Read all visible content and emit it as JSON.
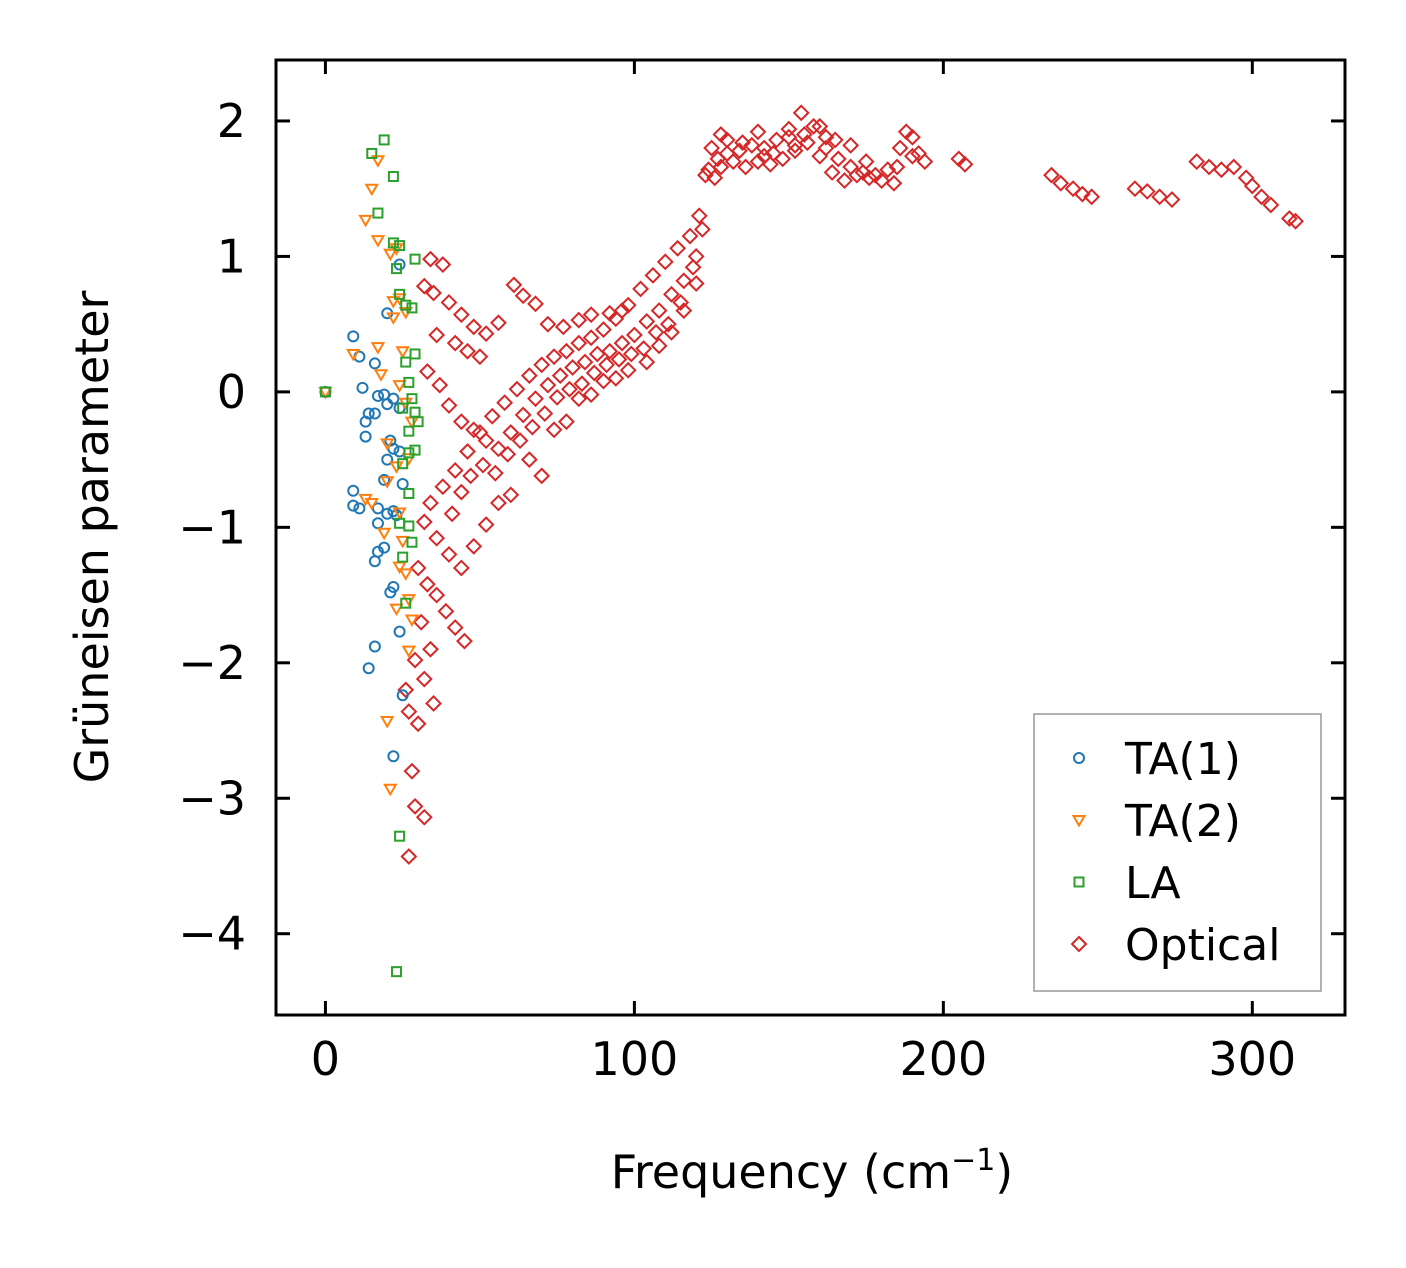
{
  "chart_data": {
    "type": "scatter",
    "title": "",
    "xlabel": "Frequency (cm",
    "xlabel_sup": "−1",
    "xlabel_close": ")",
    "ylabel": "Grüneisen parameter",
    "xlim": [
      -16,
      330
    ],
    "ylim": [
      -4.6,
      2.45
    ],
    "xticks": [
      0,
      100,
      200,
      300
    ],
    "xtick_labels": [
      "0",
      "100",
      "200",
      "300"
    ],
    "yticks": [
      -4,
      -3,
      -2,
      -1,
      0,
      1,
      2
    ],
    "ytick_labels": [
      "−4",
      "−3",
      "−2",
      "−1",
      "0",
      "1",
      "2"
    ],
    "legend_position": "bottom-right",
    "series": [
      {
        "name": "TA(1)",
        "marker": "circle",
        "color": "#1f77b4",
        "points": [
          [
            0,
            0
          ],
          [
            9,
            0.41
          ],
          [
            11,
            0.26
          ],
          [
            12,
            0.03
          ],
          [
            14,
            -0.16
          ],
          [
            17,
            -0.03
          ],
          [
            19,
            -0.02
          ],
          [
            20,
            -0.09
          ],
          [
            22,
            -0.05
          ],
          [
            24,
            -0.12
          ],
          [
            16,
            -0.16
          ],
          [
            13,
            -0.22
          ],
          [
            13,
            -0.33
          ],
          [
            21,
            -0.36
          ],
          [
            22,
            -0.42
          ],
          [
            24,
            -0.44
          ],
          [
            20,
            -0.5
          ],
          [
            19,
            -0.65
          ],
          [
            25,
            -0.68
          ],
          [
            9,
            -0.73
          ],
          [
            9,
            -0.84
          ],
          [
            11,
            -0.86
          ],
          [
            17,
            -0.86
          ],
          [
            22,
            -0.88
          ],
          [
            20,
            -0.9
          ],
          [
            23,
            -0.91
          ],
          [
            17,
            -0.97
          ],
          [
            19,
            -1.15
          ],
          [
            17,
            -1.18
          ],
          [
            16,
            -1.25
          ],
          [
            22,
            -1.44
          ],
          [
            21,
            -1.48
          ],
          [
            24,
            -1.77
          ],
          [
            16,
            -1.88
          ],
          [
            14,
            -2.04
          ],
          [
            25,
            -2.24
          ],
          [
            22,
            -2.69
          ],
          [
            20,
            0.58
          ],
          [
            24,
            0.94
          ],
          [
            16,
            0.21
          ]
        ]
      },
      {
        "name": "TA(2)",
        "marker": "triangle",
        "color": "#ff7f0e",
        "points": [
          [
            0,
            0
          ],
          [
            9,
            0.28
          ],
          [
            13,
            1.27
          ],
          [
            15,
            1.5
          ],
          [
            17,
            1.71
          ],
          [
            17,
            1.12
          ],
          [
            21,
            1.02
          ],
          [
            23,
            1.06
          ],
          [
            22,
            0.67
          ],
          [
            24,
            0.69
          ],
          [
            22,
            0.55
          ],
          [
            26,
            0.59
          ],
          [
            17,
            0.33
          ],
          [
            25,
            0.3
          ],
          [
            18,
            0.13
          ],
          [
            24,
            0.05
          ],
          [
            26,
            -0.08
          ],
          [
            28,
            -0.22
          ],
          [
            20,
            -0.38
          ],
          [
            23,
            -0.55
          ],
          [
            27,
            -0.49
          ],
          [
            20,
            -0.66
          ],
          [
            13,
            -0.79
          ],
          [
            15,
            -0.82
          ],
          [
            24,
            -0.89
          ],
          [
            19,
            -1.04
          ],
          [
            25,
            -1.1
          ],
          [
            24,
            -1.29
          ],
          [
            26,
            -1.34
          ],
          [
            27,
            -1.53
          ],
          [
            28,
            -1.68
          ],
          [
            27,
            -1.91
          ],
          [
            20,
            -2.43
          ],
          [
            21,
            -2.93
          ],
          [
            23,
            -1.6
          ]
        ]
      },
      {
        "name": "LA",
        "marker": "square",
        "color": "#2ca02c",
        "points": [
          [
            0,
            0
          ],
          [
            15,
            1.76
          ],
          [
            19,
            1.86
          ],
          [
            22,
            1.59
          ],
          [
            17,
            1.32
          ],
          [
            22,
            1.1
          ],
          [
            24,
            1.08
          ],
          [
            23,
            0.91
          ],
          [
            29,
            0.98
          ],
          [
            24,
            0.72
          ],
          [
            26,
            0.64
          ],
          [
            28,
            0.62
          ],
          [
            29,
            0.28
          ],
          [
            26,
            0.22
          ],
          [
            27,
            0.07
          ],
          [
            28,
            -0.05
          ],
          [
            25,
            -0.12
          ],
          [
            29,
            -0.15
          ],
          [
            27,
            -0.29
          ],
          [
            30,
            -0.22
          ],
          [
            27,
            -0.45
          ],
          [
            25,
            -0.53
          ],
          [
            29,
            -0.43
          ],
          [
            27,
            -0.75
          ],
          [
            24,
            -0.97
          ],
          [
            27,
            -0.99
          ],
          [
            28,
            -1.11
          ],
          [
            25,
            -1.22
          ],
          [
            26,
            -1.56
          ],
          [
            24,
            -3.28
          ],
          [
            23,
            -4.28
          ]
        ]
      },
      {
        "name": "Optical",
        "marker": "diamond",
        "color": "#d62728",
        "points": [
          [
            34,
            0.98
          ],
          [
            38,
            0.94
          ],
          [
            32,
            0.78
          ],
          [
            35,
            0.73
          ],
          [
            40,
            0.66
          ],
          [
            44,
            0.57
          ],
          [
            48,
            0.48
          ],
          [
            52,
            0.43
          ],
          [
            56,
            0.51
          ],
          [
            61,
            0.79
          ],
          [
            64,
            0.71
          ],
          [
            68,
            0.65
          ],
          [
            72,
            0.5
          ],
          [
            77,
            0.48
          ],
          [
            82,
            0.53
          ],
          [
            86,
            0.57
          ],
          [
            92,
            0.58
          ],
          [
            96,
            0.6
          ],
          [
            42,
            0.36
          ],
          [
            46,
            0.3
          ],
          [
            50,
            0.26
          ],
          [
            36,
            0.42
          ],
          [
            33,
            0.15
          ],
          [
            37,
            0.05
          ],
          [
            40,
            -0.1
          ],
          [
            44,
            -0.22
          ],
          [
            48,
            -0.28
          ],
          [
            52,
            -0.36
          ],
          [
            56,
            -0.42
          ],
          [
            60,
            -0.3
          ],
          [
            64,
            -0.17
          ],
          [
            68,
            -0.05
          ],
          [
            72,
            0.05
          ],
          [
            76,
            0.12
          ],
          [
            80,
            0.18
          ],
          [
            84,
            0.22
          ],
          [
            88,
            0.28
          ],
          [
            92,
            0.3
          ],
          [
            96,
            0.36
          ],
          [
            100,
            0.42
          ],
          [
            104,
            0.52
          ],
          [
            108,
            0.6
          ],
          [
            112,
            0.72
          ],
          [
            116,
            0.82
          ],
          [
            120,
            1.0
          ],
          [
            122,
            1.2
          ],
          [
            118,
            1.15
          ],
          [
            114,
            1.06
          ],
          [
            110,
            0.96
          ],
          [
            106,
            0.86
          ],
          [
            102,
            0.76
          ],
          [
            98,
            0.64
          ],
          [
            94,
            0.54
          ],
          [
            90,
            0.46
          ],
          [
            86,
            0.4
          ],
          [
            82,
            0.36
          ],
          [
            78,
            0.3
          ],
          [
            74,
            0.26
          ],
          [
            70,
            0.2
          ],
          [
            66,
            0.12
          ],
          [
            62,
            0.02
          ],
          [
            58,
            -0.08
          ],
          [
            54,
            -0.18
          ],
          [
            50,
            -0.3
          ],
          [
            46,
            -0.44
          ],
          [
            42,
            -0.58
          ],
          [
            38,
            -0.7
          ],
          [
            34,
            -0.82
          ],
          [
            32,
            -0.96
          ],
          [
            36,
            -1.08
          ],
          [
            40,
            -1.2
          ],
          [
            44,
            -1.3
          ],
          [
            48,
            -1.14
          ],
          [
            52,
            -0.98
          ],
          [
            56,
            -0.82
          ],
          [
            60,
            -0.76
          ],
          [
            66,
            -0.5
          ],
          [
            70,
            -0.62
          ],
          [
            74,
            -0.28
          ],
          [
            78,
            -0.22
          ],
          [
            82,
            -0.05
          ],
          [
            86,
            -0.02
          ],
          [
            90,
            0.08
          ],
          [
            94,
            0.1
          ],
          [
            98,
            0.16
          ],
          [
            104,
            0.22
          ],
          [
            108,
            0.34
          ],
          [
            112,
            0.44
          ],
          [
            116,
            0.6
          ],
          [
            120,
            0.8
          ],
          [
            30,
            -1.3
          ],
          [
            33,
            -1.42
          ],
          [
            36,
            -1.5
          ],
          [
            39,
            -1.62
          ],
          [
            42,
            -1.74
          ],
          [
            45,
            -1.84
          ],
          [
            31,
            -1.7
          ],
          [
            34,
            -1.9
          ],
          [
            29,
            -1.98
          ],
          [
            32,
            -2.12
          ],
          [
            35,
            -2.3
          ],
          [
            30,
            -2.45
          ],
          [
            27,
            -2.36
          ],
          [
            28,
            -2.8
          ],
          [
            32,
            -3.14
          ],
          [
            29,
            -3.06
          ],
          [
            27,
            -3.43
          ],
          [
            26,
            -2.2
          ],
          [
            41,
            -0.9
          ],
          [
            44,
            -0.74
          ],
          [
            47,
            -0.62
          ],
          [
            51,
            -0.54
          ],
          [
            55,
            -0.6
          ],
          [
            59,
            -0.46
          ],
          [
            63,
            -0.36
          ],
          [
            67,
            -0.26
          ],
          [
            71,
            -0.16
          ],
          [
            75,
            -0.04
          ],
          [
            79,
            0.02
          ],
          [
            83,
            0.06
          ],
          [
            87,
            0.14
          ],
          [
            91,
            0.2
          ],
          [
            95,
            0.24
          ],
          [
            99,
            0.28
          ],
          [
            103,
            0.32
          ],
          [
            107,
            0.44
          ],
          [
            111,
            0.5
          ],
          [
            115,
            0.66
          ],
          [
            119,
            0.92
          ],
          [
            121,
            1.3
          ],
          [
            123,
            1.6
          ],
          [
            125,
            1.8
          ],
          [
            127,
            1.72
          ],
          [
            130,
            1.86
          ],
          [
            134,
            1.78
          ],
          [
            138,
            1.82
          ],
          [
            142,
            1.74
          ],
          [
            146,
            1.86
          ],
          [
            150,
            1.88
          ],
          [
            154,
            2.06
          ],
          [
            158,
            1.96
          ],
          [
            162,
            1.8
          ],
          [
            166,
            1.72
          ],
          [
            170,
            1.66
          ],
          [
            174,
            1.62
          ],
          [
            178,
            1.6
          ],
          [
            182,
            1.64
          ],
          [
            186,
            1.8
          ],
          [
            188,
            1.92
          ],
          [
            190,
            1.88
          ],
          [
            194,
            1.7
          ],
          [
            205,
            1.72
          ],
          [
            207,
            1.68
          ],
          [
            235,
            1.6
          ],
          [
            238,
            1.54
          ],
          [
            242,
            1.5
          ],
          [
            245,
            1.46
          ],
          [
            248,
            1.44
          ],
          [
            262,
            1.5
          ],
          [
            266,
            1.48
          ],
          [
            270,
            1.44
          ],
          [
            274,
            1.42
          ],
          [
            282,
            1.7
          ],
          [
            286,
            1.66
          ],
          [
            290,
            1.64
          ],
          [
            294,
            1.66
          ],
          [
            298,
            1.58
          ],
          [
            300,
            1.52
          ],
          [
            303,
            1.44
          ],
          [
            306,
            1.38
          ],
          [
            312,
            1.28
          ],
          [
            314,
            1.26
          ],
          [
            124,
            1.64
          ],
          [
            126,
            1.58
          ],
          [
            128,
            1.66
          ],
          [
            132,
            1.7
          ],
          [
            136,
            1.66
          ],
          [
            140,
            1.7
          ],
          [
            144,
            1.68
          ],
          [
            148,
            1.72
          ],
          [
            152,
            1.78
          ],
          [
            156,
            1.84
          ],
          [
            160,
            1.74
          ],
          [
            164,
            1.62
          ],
          [
            168,
            1.56
          ],
          [
            172,
            1.6
          ],
          [
            176,
            1.58
          ],
          [
            180,
            1.56
          ],
          [
            184,
            1.54
          ],
          [
            192,
            1.76
          ],
          [
            128,
            1.9
          ],
          [
            140,
            1.92
          ],
          [
            150,
            1.94
          ],
          [
            160,
            1.96
          ],
          [
            170,
            1.82
          ],
          [
            135,
            1.84
          ],
          [
            145,
            1.76
          ],
          [
            155,
            1.9
          ],
          [
            165,
            1.86
          ],
          [
            175,
            1.7
          ],
          [
            185,
            1.66
          ],
          [
            130,
            1.76
          ],
          [
            142,
            1.8
          ],
          [
            152,
            1.82
          ],
          [
            162,
            1.88
          ],
          [
            190,
            1.74
          ]
        ]
      }
    ]
  }
}
